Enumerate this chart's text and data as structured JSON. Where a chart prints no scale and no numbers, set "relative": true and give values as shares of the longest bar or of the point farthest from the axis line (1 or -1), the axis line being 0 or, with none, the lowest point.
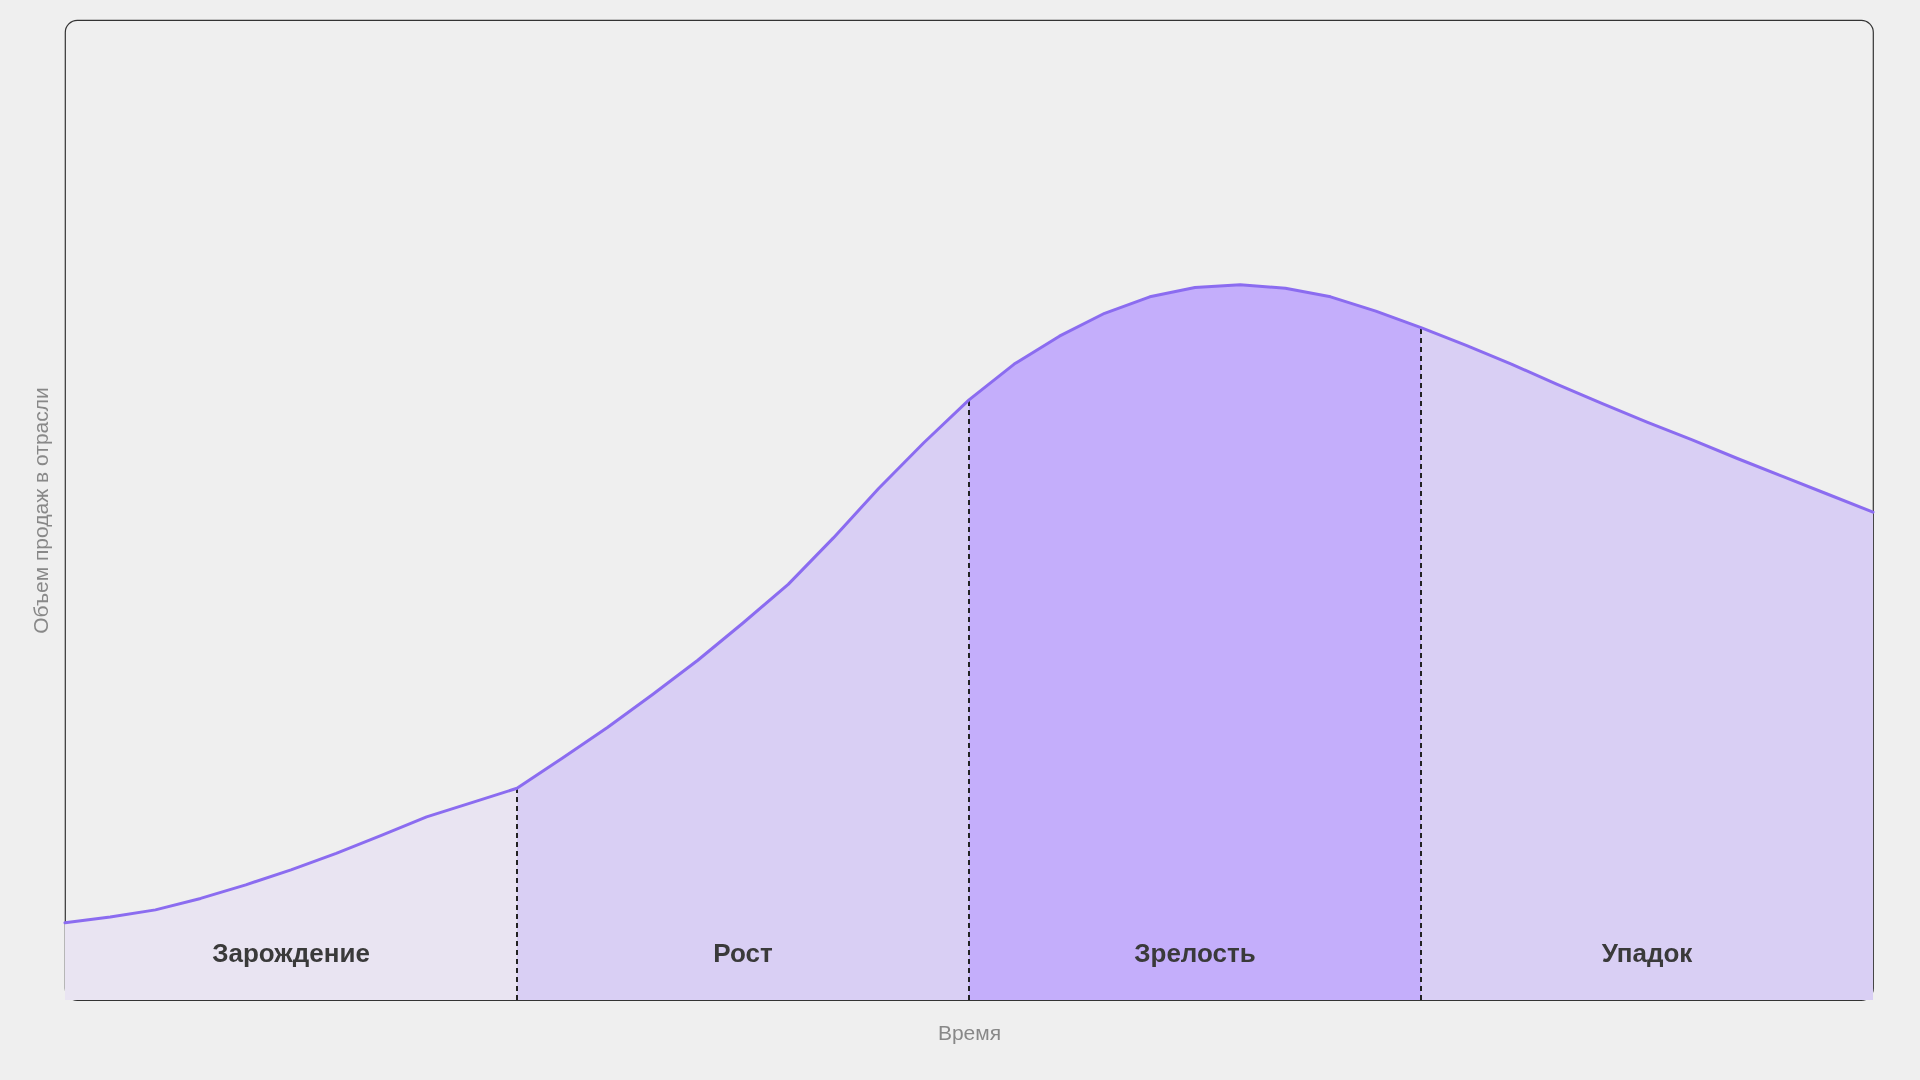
{
  "chart_data": {
    "type": "area",
    "relative": true,
    "xlabel": "Время",
    "ylabel": "Объем продаж в отрасли",
    "categories": [
      null,
      null,
      null,
      null,
      null,
      null,
      null,
      null,
      null,
      null,
      null,
      null,
      null,
      null,
      null,
      null,
      null,
      null,
      null,
      null,
      null,
      null,
      null,
      null,
      null,
      null,
      null,
      null,
      null,
      null,
      null,
      null,
      null,
      null,
      null,
      null,
      null,
      null,
      null,
      null,
      null
    ],
    "series": [
      {
        "name": "Зарождение",
        "color": "#e9e4f2",
        "values": [
          0.108,
          0.116,
          0.126,
          0.142,
          0.161,
          0.182,
          0.205,
          0.23,
          0.256,
          0.276,
          0.296,
          null,
          null,
          null,
          null,
          null,
          null,
          null,
          null,
          null,
          null,
          null,
          null,
          null,
          null,
          null,
          null,
          null,
          null,
          null,
          null,
          null,
          null,
          null,
          null,
          null,
          null,
          null,
          null,
          null,
          null
        ]
      },
      {
        "name": "Рост",
        "color": "#d9cff4",
        "values": [
          null,
          null,
          null,
          null,
          null,
          null,
          null,
          null,
          null,
          null,
          0.296,
          0.338,
          0.381,
          0.427,
          0.475,
          0.527,
          0.581,
          0.646,
          0.715,
          0.779,
          0.839,
          null,
          null,
          null,
          null,
          null,
          null,
          null,
          null,
          null,
          null,
          null,
          null,
          null,
          null,
          null,
          null,
          null,
          null,
          null,
          null
        ]
      },
      {
        "name": "Зрелость",
        "color": "#c4aefb",
        "values": [
          null,
          null,
          null,
          null,
          null,
          null,
          null,
          null,
          null,
          null,
          null,
          null,
          null,
          null,
          null,
          null,
          null,
          null,
          null,
          null,
          0.839,
          0.889,
          0.928,
          0.96,
          0.983,
          0.996,
          1,
          0.995,
          0.983,
          0.963,
          0.94,
          null,
          null,
          null,
          null,
          null,
          null,
          null,
          null,
          null,
          null
        ]
      },
      {
        "name": "Упадок",
        "color": "#d9cff4",
        "values": [
          null,
          null,
          null,
          null,
          null,
          null,
          null,
          null,
          null,
          null,
          null,
          null,
          null,
          null,
          null,
          null,
          null,
          null,
          null,
          null,
          null,
          null,
          null,
          null,
          null,
          null,
          null,
          null,
          null,
          null,
          0.94,
          0.915,
          0.889,
          0.861,
          0.834,
          0.808,
          0.783,
          0.757,
          0.732,
          0.707,
          0.682
        ]
      },
      {
        "type": "line",
        "color": "#8b6cf0",
        "values": [
          0.108,
          0.116,
          0.126,
          0.142,
          0.161,
          0.182,
          0.205,
          0.23,
          0.256,
          0.276,
          0.296,
          0.338,
          0.381,
          0.427,
          0.475,
          0.527,
          0.581,
          0.646,
          0.715,
          0.779,
          0.839,
          0.889,
          0.928,
          0.96,
          0.983,
          0.996,
          1,
          0.995,
          0.983,
          0.963,
          0.94,
          0.915,
          0.889,
          0.861,
          0.834,
          0.808,
          0.783,
          0.757,
          0.732,
          0.707,
          0.682
        ]
      }
    ]
  }
}
